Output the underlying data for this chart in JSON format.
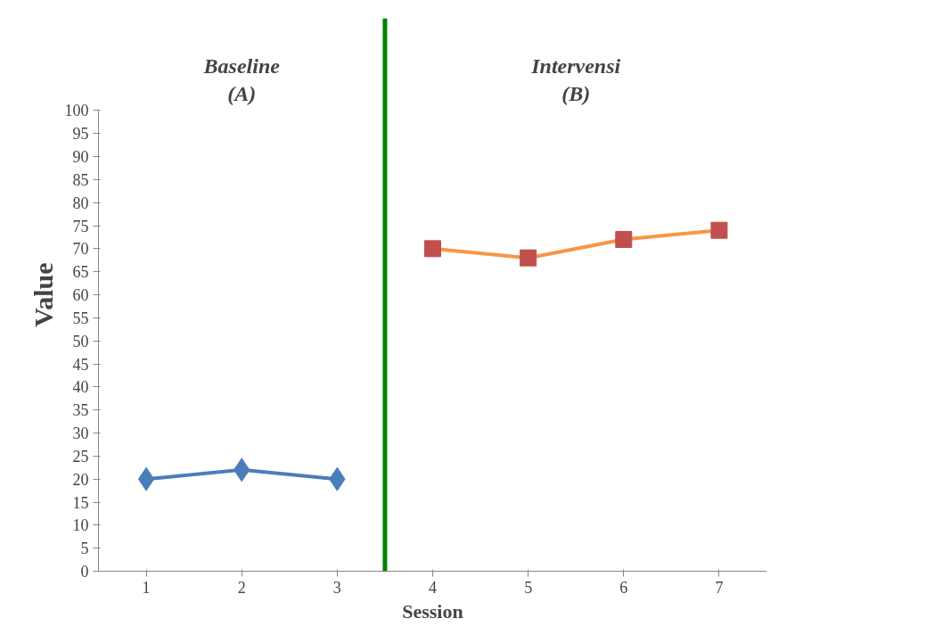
{
  "chart_data": {
    "type": "line",
    "xlabel": "Session",
    "ylabel": "Value",
    "annotations": [
      "Baseline\n(A)",
      "Intervensi\n(B)"
    ],
    "series": [
      {
        "x": [
          1,
          2,
          3
        ],
        "values": [
          20,
          22,
          20
        ],
        "color": "#4a7ebb",
        "colors": [
          "#4a7ebb",
          "#4a7ebb",
          "#4a7ebb"
        ],
        "marker": "diamond"
      },
      {
        "x": [
          4,
          5,
          6,
          7
        ],
        "values": [
          70,
          68,
          72,
          74
        ],
        "color": "#f79646",
        "colors": [
          "#c0504d",
          "#c0504d",
          "#c0504d",
          "#c0504d"
        ],
        "marker": "square"
      }
    ],
    "xlim": [
      0.5,
      7.5
    ],
    "xticks": [
      1,
      2,
      3,
      4,
      5,
      6,
      7
    ],
    "ylim": [
      0,
      100
    ],
    "yticks": [
      0,
      5,
      10,
      15,
      20,
      25,
      30,
      35,
      40,
      45,
      50,
      55,
      60,
      65,
      70,
      75,
      80,
      85,
      90,
      95,
      100
    ],
    "ref_lines": [
      {
        "axis": "x",
        "value": 3.5,
        "color": "#008000"
      }
    ],
    "grid": false,
    "line_style": "solid"
  }
}
